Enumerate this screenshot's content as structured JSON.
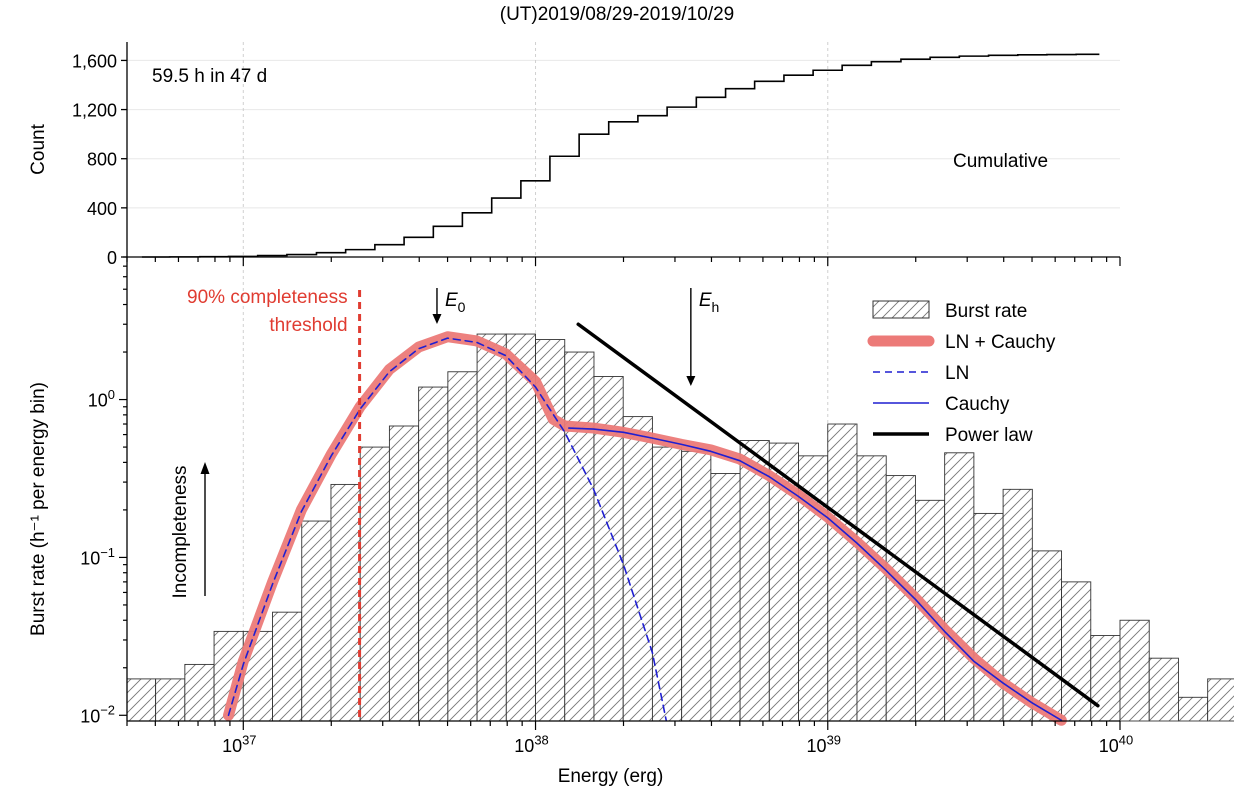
{
  "title": "(UT)2019/08/29-2019/10/29",
  "chart_data": [
    {
      "type": "line",
      "step": true,
      "ylabel": "Count",
      "x_scale": "log",
      "xlim": [
        4e+36,
        1e+40
      ],
      "ylim": [
        0,
        1750
      ],
      "yticks": [
        0,
        400,
        800,
        1200,
        1600
      ],
      "ytick_labels": [
        "0",
        "400",
        "800",
        "1,200",
        "1,600"
      ],
      "annotations": [
        "59.5 h in 47 d",
        "Cumulative"
      ],
      "grid": true,
      "series": [
        {
          "x": [
            "4.5e36",
            "5.6e36",
            "7.1e36",
            "8.9e36",
            "1.12e37",
            "1.41e37",
            "1.78e37",
            "2.24e37",
            "2.82e37",
            "3.55e37",
            "4.47e37",
            "5.62e37",
            "7.08e37",
            "8.91e37",
            "1.12e38",
            "1.41e38",
            "1.78e38",
            "2.24e38",
            "2.82e38",
            "3.55e38",
            "4.47e38",
            "5.62e38",
            "7.08e38",
            "8.91e38",
            "1.12e39",
            "1.41e39",
            "1.78e39",
            "2.24e39",
            "2.82e39",
            "3.55e39",
            "4.47e39",
            "5.62e39",
            "7.08e39",
            "8.5e39"
          ],
          "y": [
            0,
            1,
            3,
            5,
            12,
            20,
            35,
            60,
            100,
            160,
            250,
            360,
            480,
            620,
            820,
            1000,
            1100,
            1150,
            1220,
            1300,
            1370,
            1430,
            1480,
            1520,
            1560,
            1590,
            1610,
            1625,
            1635,
            1642,
            1646,
            1648,
            1650,
            1650
          ]
        }
      ]
    },
    {
      "type": "bar",
      "xlabel": "Energy (erg)",
      "ylabel": "Burst rate (h⁻¹ per energy bin)",
      "x_scale": "log",
      "y_scale": "log",
      "xlim": [
        4e+36,
        1e+40
      ],
      "ylim": [
        0.0092,
        8.0
      ],
      "xtick_labels": [
        {
          "base": "10",
          "exp": "37",
          "value": 1e+37
        },
        {
          "base": "10",
          "exp": "38",
          "value": 1e+38
        },
        {
          "base": "10",
          "exp": "39",
          "value": 1e+39
        },
        {
          "base": "10",
          "exp": "40",
          "value": 1e+40
        }
      ],
      "ytick_labels": [
        {
          "base": "10",
          "exp": "−2",
          "value": 0.01
        },
        {
          "base": "10",
          "exp": "−1",
          "value": 0.1
        },
        {
          "base": "10",
          "exp": "0",
          "value": 1
        }
      ],
      "bins_log10_start": 36.6,
      "bin_width_log10": 0.1,
      "values": [
        0.017,
        0.017,
        0.021,
        0.034,
        0.034,
        0.045,
        0.17,
        0.29,
        0.5,
        0.68,
        1.2,
        1.5,
        2.6,
        2.6,
        2.4,
        2.0,
        1.4,
        0.78,
        0.5,
        0.47,
        0.34,
        0.55,
        0.53,
        0.44,
        0.7,
        0.44,
        0.33,
        0.23,
        0.46,
        0.19,
        0.27,
        0.11,
        0.07,
        0.032,
        0.04,
        0.023,
        0.013,
        0.017
      ],
      "legend_position": "top-right",
      "legend": [
        {
          "label": "Burst rate",
          "style": "hatched"
        },
        {
          "label": "LN + Cauchy",
          "color": "#ec7a78"
        },
        {
          "label": "LN",
          "color": "#1f1fd1",
          "dash": true
        },
        {
          "label": "Cauchy",
          "color": "#1f1fd1"
        },
        {
          "label": "Power law",
          "color": "#000000"
        }
      ],
      "lines": {
        "ln_cauchy": {
          "x": [
            8.9e+36,
            1e+37,
            1.26e+37,
            1.58e+37,
            2e+37,
            2.51e+37,
            3.16e+37,
            3.98e+37,
            5e+37,
            6.3e+37,
            7.9e+37,
            1e+38,
            1.15e+38,
            1.26e+38,
            1.58e+38,
            2e+38,
            2.51e+38,
            3.16e+38,
            3.98e+38,
            5e+38,
            6.3e+38,
            7.9e+38,
            1e+39,
            1.26e+39,
            1.58e+39,
            2e+39,
            2.51e+39,
            3.16e+39,
            3.98e+39,
            5e+39,
            6.3e+39
          ],
          "y": [
            0.01,
            0.022,
            0.07,
            0.2,
            0.45,
            0.9,
            1.55,
            2.15,
            2.5,
            2.35,
            1.95,
            1.3,
            0.75,
            0.68,
            0.66,
            0.62,
            0.57,
            0.52,
            0.48,
            0.42,
            0.33,
            0.25,
            0.18,
            0.125,
            0.085,
            0.055,
            0.035,
            0.023,
            0.016,
            0.012,
            0.0093
          ]
        },
        "ln": {
          "x": [
            8.9e+36,
            1e+37,
            1.26e+37,
            1.58e+37,
            2e+37,
            2.51e+37,
            3.16e+37,
            3.98e+37,
            5e+37,
            6.3e+37,
            7.9e+37,
            1e+38,
            1.26e+38,
            1.58e+38,
            2e+38,
            2.51e+38,
            2.8e+38
          ],
          "y": [
            0.01,
            0.021,
            0.068,
            0.195,
            0.44,
            0.87,
            1.5,
            2.1,
            2.45,
            2.3,
            1.9,
            1.2,
            0.62,
            0.27,
            0.09,
            0.025,
            0.0093
          ]
        },
        "cauchy": {
          "x": [
            1.3e+38,
            1.58e+38,
            2e+38,
            2.51e+38,
            3.16e+38,
            3.98e+38,
            5e+38,
            6.3e+38,
            7.9e+38,
            1e+39,
            1.26e+39,
            1.58e+39,
            2e+39,
            2.51e+39,
            3.16e+39,
            3.98e+39,
            5e+39,
            6.3e+39
          ],
          "y": [
            0.66,
            0.65,
            0.62,
            0.57,
            0.52,
            0.47,
            0.41,
            0.325,
            0.245,
            0.178,
            0.123,
            0.083,
            0.054,
            0.034,
            0.022,
            0.016,
            0.012,
            0.0093
          ]
        },
        "power_law": {
          "x": [
            1.4e+38,
            8.4e+39
          ],
          "y": [
            3.0,
            0.0115
          ]
        }
      },
      "threshold": {
        "x": 2.5e+37,
        "label_lines": [
          "90% completeness",
          "threshold"
        ],
        "color": "#e03c31"
      },
      "markers": [
        {
          "label": "E",
          "sub": "0",
          "x": 4.6e+37
        },
        {
          "label": "E",
          "sub": "h",
          "x": 3.4e+38
        }
      ],
      "annotations": [
        "Incompleteness"
      ]
    }
  ]
}
